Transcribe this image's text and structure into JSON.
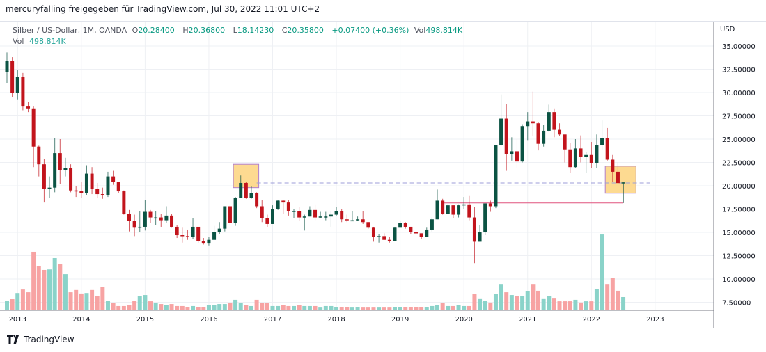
{
  "header": {
    "title": "mercuryfalling freigegeben für TradingView.com, Jul 30, 2022 11:01 UTC+2"
  },
  "legend": {
    "symbol": "Silber / US-Dollar, 1M, OANDA",
    "o_label": "O",
    "o": "20.28400",
    "h_label": "H",
    "h": "20.36800",
    "l_label": "L",
    "l": "18.14230",
    "c_label": "C",
    "c": "20.35800",
    "change": "+0.07400 (+0.36%)",
    "vol_label": "Vol",
    "vol": "498.814K",
    "vol_row_label": "Vol",
    "vol_row_value": "498.814K"
  },
  "footer": {
    "brand": "TradingView",
    "logo_icon": "tradingview-logo-icon"
  },
  "colors": {
    "up": "#0b5343",
    "down": "#c2141c",
    "vol_up": "#8ad3c9",
    "vol_down": "#f7a3a3",
    "box_fill": "#fdd47e",
    "box_border": "#b07fd0",
    "dashed": "#9c9ed8",
    "hline": "#e0547e"
  },
  "chart_data": {
    "type": "candlestick",
    "title": "Silber / US-Dollar, 1M, OANDA",
    "currency_label": "USD",
    "start_month": "2012-11",
    "ylim": [
      7.5,
      35
    ],
    "y_ticks": [
      "35.00000",
      "32.50000",
      "30.00000",
      "27.50000",
      "25.00000",
      "22.50000",
      "20.00000",
      "17.50000",
      "15.00000",
      "12.50000",
      "10.00000",
      "7.50000"
    ],
    "y_tick_values": [
      35,
      32.5,
      30,
      27.5,
      25,
      22.5,
      20,
      17.5,
      15,
      12.5,
      10,
      7.5
    ],
    "x_ticks": [
      "2013",
      "2014",
      "2015",
      "2016",
      "2017",
      "2018",
      "2019",
      "2020",
      "2021",
      "2022",
      "2023"
    ],
    "first_open": 32.2,
    "close": [
      33.4,
      30.0,
      31.7,
      28.5,
      28.3,
      24.2,
      22.3,
      19.7,
      19.8,
      23.5,
      21.7,
      21.9,
      19.5,
      19.4,
      19.2,
      21.3,
      19.7,
      19.1,
      19.0,
      21.0,
      20.4,
      19.4,
      17.0,
      16.2,
      15.5,
      15.6,
      17.2,
      16.6,
      16.6,
      16.3,
      16.8,
      15.6,
      14.7,
      14.6,
      14.5,
      15.6,
      14.1,
      13.8,
      14.2,
      15.0,
      15.4,
      17.8,
      16.0,
      18.7,
      20.3,
      18.7,
      19.2,
      17.8,
      16.5,
      15.9,
      17.5,
      18.4,
      18.2,
      17.3,
      17.3,
      16.6,
      16.7,
      17.4,
      16.6,
      16.7,
      16.7,
      16.9,
      17.3,
      16.4,
      16.3,
      16.3,
      16.4,
      16.1,
      15.5,
      14.5,
      14.6,
      14.2,
      14.1,
      15.5,
      16.0,
      15.6,
      15.0,
      14.9,
      14.5,
      15.3,
      16.4,
      18.4,
      17.0,
      17.9,
      16.9,
      17.9,
      18.0,
      16.6,
      14.0,
      15.0,
      18.1,
      17.8,
      24.4,
      27.2,
      23.4,
      23.7,
      22.6,
      26.4,
      26.9,
      26.7,
      24.5,
      25.9,
      27.9,
      26.0,
      25.5,
      23.9,
      22.0,
      24.0,
      23.1,
      23.3,
      22.4,
      24.4,
      25.1,
      22.8,
      21.5,
      20.284,
      20.358
    ],
    "high": [
      34.3,
      33.8,
      32.4,
      32.1,
      29.0,
      28.5,
      24.3,
      22.9,
      21.0,
      25.1,
      25.0,
      23.0,
      22.3,
      20.0,
      20.4,
      22.2,
      22.0,
      20.3,
      19.8,
      21.5,
      21.6,
      20.3,
      19.5,
      17.4,
      16.9,
      17.3,
      18.5,
      17.4,
      17.3,
      17.0,
      17.8,
      17.0,
      15.8,
      15.5,
      15.3,
      16.5,
      15.3,
      14.4,
      14.5,
      15.7,
      16.1,
      17.8,
      18.0,
      18.8,
      21.1,
      20.4,
      20.0,
      19.3,
      18.5,
      16.9,
      17.9,
      18.5,
      18.5,
      18.5,
      17.5,
      17.7,
      16.9,
      17.8,
      18.0,
      17.2,
      17.2,
      17.3,
      17.7,
      17.5,
      16.9,
      17.3,
      16.7,
      17.3,
      16.1,
      15.6,
      14.8,
      14.9,
      14.5,
      15.6,
      16.2,
      16.1,
      15.6,
      15.2,
      14.7,
      15.5,
      16.6,
      19.6,
      18.6,
      18.0,
      17.9,
      18.0,
      18.8,
      18.9,
      17.7,
      15.8,
      18.1,
      18.4,
      24.4,
      29.8,
      28.8,
      25.2,
      25.0,
      26.6,
      27.9,
      30.1,
      26.8,
      26.5,
      28.7,
      28.3,
      26.7,
      24.8,
      24.6,
      25.0,
      25.4,
      23.6,
      24.7,
      25.5,
      27.0,
      26.2,
      23.3,
      22.5,
      20.368
    ],
    "low": [
      31.0,
      29.5,
      29.2,
      28.1,
      27.9,
      22.0,
      21.0,
      18.2,
      18.7,
      19.3,
      20.2,
      21.0,
      19.3,
      18.8,
      18.7,
      19.0,
      19.1,
      18.7,
      18.6,
      18.8,
      20.1,
      19.2,
      16.9,
      15.1,
      14.6,
      15.0,
      15.2,
      16.0,
      15.8,
      15.6,
      16.0,
      15.5,
      14.4,
      13.9,
      14.2,
      14.3,
      13.9,
      13.7,
      13.6,
      14.4,
      14.8,
      15.1,
      15.8,
      15.7,
      19.5,
      18.6,
      18.6,
      17.6,
      16.1,
      15.6,
      15.9,
      17.4,
      17.0,
      16.8,
      16.5,
      16.2,
      15.2,
      16.7,
      16.3,
      16.5,
      16.3,
      15.6,
      16.8,
      16.1,
      16.1,
      16.3,
      16.2,
      15.9,
      15.4,
      14.0,
      13.9,
      14.2,
      13.9,
      14.1,
      15.5,
      15.4,
      14.8,
      14.7,
      14.3,
      14.5,
      15.1,
      16.4,
      16.9,
      17.0,
      16.5,
      16.6,
      17.5,
      16.3,
      11.7,
      14.0,
      14.7,
      17.2,
      17.6,
      24.3,
      21.6,
      22.7,
      21.9,
      22.5,
      24.9,
      25.3,
      23.8,
      24.2,
      25.8,
      25.2,
      25.3,
      22.5,
      21.4,
      21.9,
      22.5,
      21.4,
      21.9,
      21.9,
      23.9,
      22.7,
      20.4,
      20.3,
      18.1423
    ],
    "volume_k": [
      360,
      415,
      660,
      800,
      690,
      2300,
      1720,
      1580,
      1600,
      2050,
      1800,
      1410,
      690,
      780,
      640,
      660,
      780,
      530,
      890,
      360,
      250,
      140,
      140,
      190,
      360,
      530,
      580,
      330,
      250,
      220,
      190,
      220,
      140,
      140,
      110,
      140,
      110,
      110,
      190,
      190,
      220,
      220,
      250,
      390,
      250,
      190,
      140,
      390,
      250,
      250,
      140,
      140,
      190,
      140,
      140,
      190,
      140,
      140,
      140,
      80,
      140,
      140,
      110,
      110,
      110,
      80,
      110,
      80,
      80,
      80,
      80,
      80,
      80,
      110,
      110,
      110,
      110,
      110,
      110,
      110,
      140,
      170,
      250,
      140,
      140,
      190,
      140,
      140,
      610,
      420,
      360,
      280,
      610,
      1020,
      690,
      580,
      550,
      550,
      720,
      1020,
      750,
      420,
      530,
      440,
      330,
      330,
      330,
      390,
      280,
      330,
      330,
      830,
      2990,
      1020,
      1250,
      750,
      498.814
    ],
    "annotations": [
      {
        "type": "rectangle",
        "from_month": "2016-06",
        "to_month": "2016-10",
        "price_top": 22.3,
        "price_bottom": 19.8
      },
      {
        "type": "rectangle",
        "from_month": "2022-04",
        "to_month": "2022-09",
        "price_top": 22.1,
        "price_bottom": 19.2
      },
      {
        "type": "dashed-horizontal",
        "from_month": "2016-10",
        "to_month": "2022-12",
        "price": 20.3
      },
      {
        "type": "horizontal",
        "from_month": "2019-09",
        "to_month": "2022-07",
        "price": 18.15
      },
      {
        "type": "vertical",
        "month": "2022-07",
        "price_top": 20.3,
        "price_bottom": 18.15
      }
    ]
  }
}
